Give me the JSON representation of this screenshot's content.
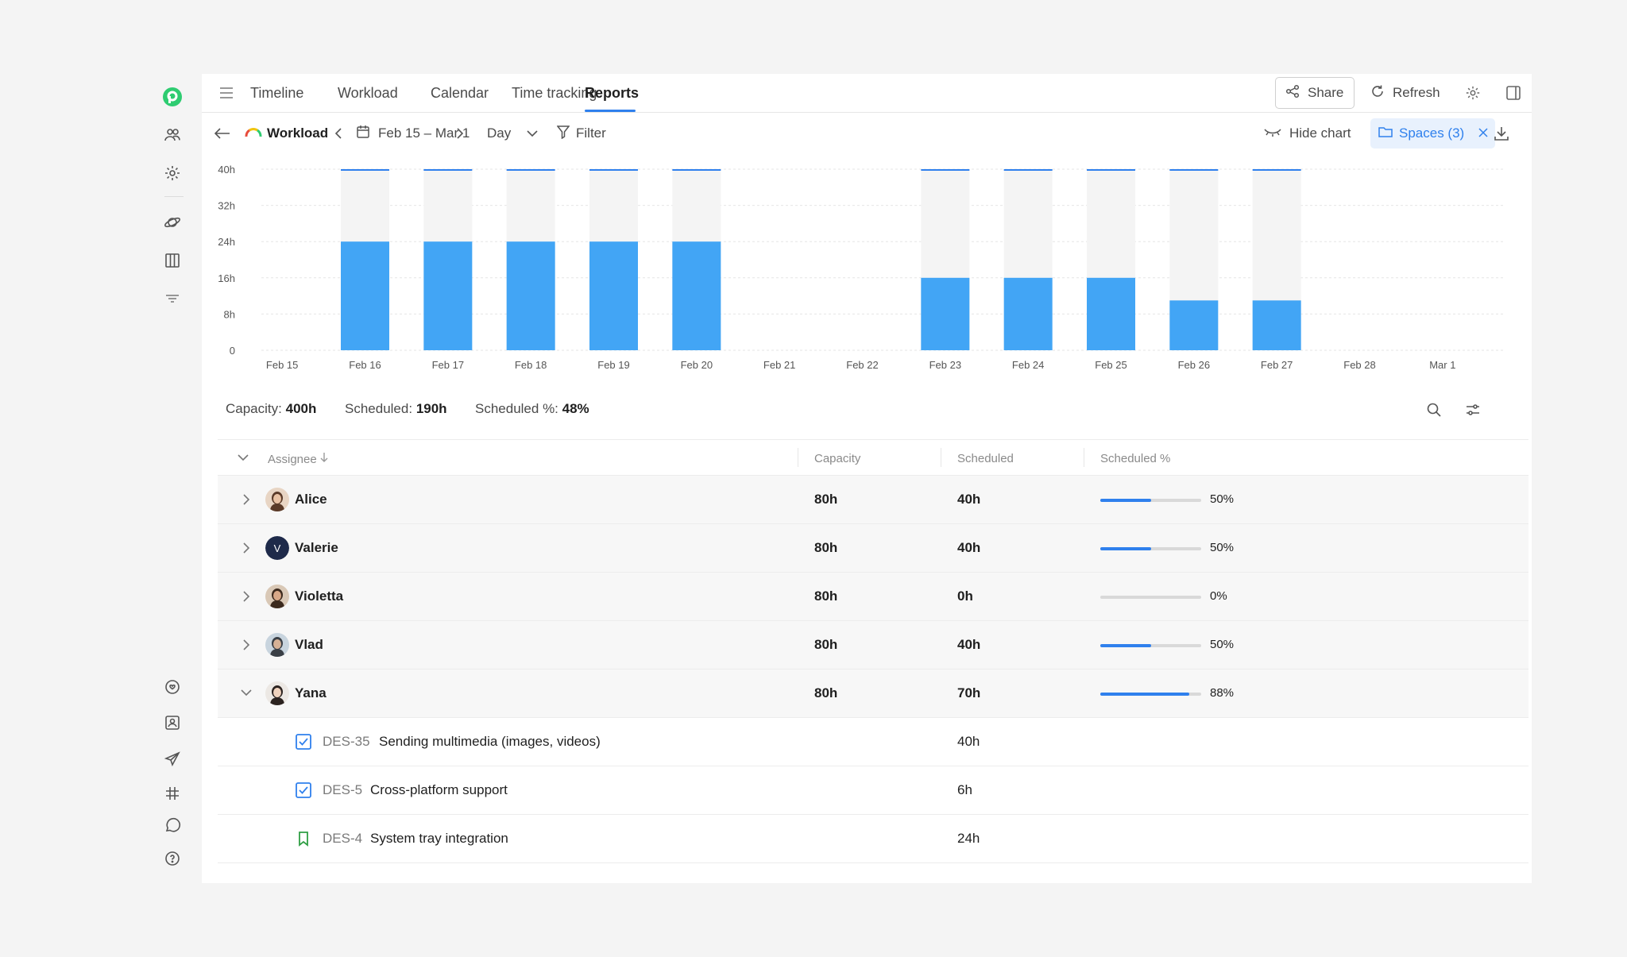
{
  "nav": {
    "tabs": [
      {
        "label": "Timeline"
      },
      {
        "label": "Workload"
      },
      {
        "label": "Calendar"
      },
      {
        "label": "Time tracking"
      },
      {
        "label": "Reports",
        "active": true
      }
    ],
    "share_label": "Share",
    "refresh_label": "Refresh"
  },
  "toolbar": {
    "report_name": "Workload",
    "date_range": "Feb 15 – Mar 1",
    "granularity": "Day",
    "filter_label": "Filter",
    "hide_chart_label": "Hide chart",
    "spaces_label": "Spaces (3)"
  },
  "chart_data": {
    "type": "bar",
    "categories": [
      "Feb 15",
      "Feb 16",
      "Feb 17",
      "Feb 18",
      "Feb 19",
      "Feb 20",
      "Feb 21",
      "Feb 22",
      "Feb 23",
      "Feb 24",
      "Feb 25",
      "Feb 26",
      "Feb 27",
      "Feb 28",
      "Mar 1"
    ],
    "series": [
      {
        "values": [
          0,
          24,
          24,
          24,
          24,
          24,
          0,
          0,
          16,
          16,
          16,
          11,
          11,
          0,
          0
        ],
        "color": "#42a5f5"
      },
      {
        "values": [
          0,
          40,
          40,
          40,
          40,
          40,
          0,
          0,
          40,
          40,
          40,
          40,
          40,
          0,
          0
        ],
        "color": "#f4f4f4"
      }
    ],
    "ylim": [
      0,
      40
    ],
    "yticks": [
      "0",
      "8h",
      "16h",
      "24h",
      "32h",
      "40h"
    ],
    "grid": true
  },
  "summary": {
    "capacity_label": "Capacity:",
    "capacity_value": "400h",
    "scheduled_label": "Scheduled:",
    "scheduled_value": "190h",
    "scheduled_pct_label": "Scheduled %:",
    "scheduled_pct_value": "48%"
  },
  "table": {
    "headers": {
      "assignee": "Assignee",
      "capacity": "Capacity",
      "scheduled": "Scheduled",
      "scheduled_pct": "Scheduled %"
    },
    "rows": [
      {
        "name": "Alice",
        "capacity": "80h",
        "scheduled": "40h",
        "pct": "50%",
        "fill": 0.5,
        "expanded": false
      },
      {
        "name": "Valerie",
        "capacity": "80h",
        "scheduled": "40h",
        "pct": "50%",
        "fill": 0.5,
        "expanded": false,
        "initial": "V"
      },
      {
        "name": "Violetta",
        "capacity": "80h",
        "scheduled": "0h",
        "pct": "0%",
        "fill": 0,
        "expanded": false
      },
      {
        "name": "Vlad",
        "capacity": "80h",
        "scheduled": "40h",
        "pct": "50%",
        "fill": 0.5,
        "expanded": false
      },
      {
        "name": "Yana",
        "capacity": "80h",
        "scheduled": "70h",
        "pct": "88%",
        "fill": 0.88,
        "expanded": true
      }
    ],
    "tasks": [
      {
        "key": "DES-35",
        "name": "Sending multimedia (images, videos)",
        "scheduled": "40h",
        "icon": "checkbox-task-icon"
      },
      {
        "key": "DES-5",
        "name": "Cross-platform support",
        "scheduled": "6h",
        "icon": "checkbox-task-icon"
      },
      {
        "key": "DES-4",
        "name": "System tray integration",
        "scheduled": "24h",
        "icon": "bookmark-story-icon"
      }
    ]
  },
  "colors": {
    "accent": "#2f80ed",
    "bar": "#42a5f5",
    "brand": "#2ecc71"
  }
}
